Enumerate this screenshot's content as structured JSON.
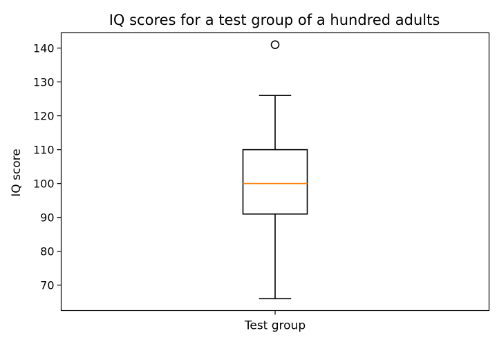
{
  "chart_data": {
    "type": "boxplot",
    "title": "IQ scores for a test group of a hundred adults",
    "xlabel": "",
    "ylabel": "IQ score",
    "categories": [
      "Test group"
    ],
    "series": [
      {
        "category": "Test group",
        "whisker_low": 66,
        "q1": 91,
        "median": 100,
        "q3": 110,
        "whisker_high": 126,
        "outliers": [
          141
        ]
      }
    ],
    "ylim": [
      62.5,
      144.5
    ],
    "yticks": [
      70,
      80,
      90,
      100,
      110,
      120,
      130,
      140
    ],
    "grid": false,
    "legend": "none",
    "colors": {
      "box": "#000000",
      "median": "#ff7f0e",
      "outlier": "#000000"
    }
  }
}
